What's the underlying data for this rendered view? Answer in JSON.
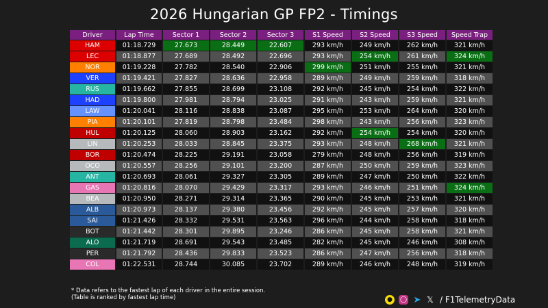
{
  "title": "2026 Hungarian GP FP2 - Timings",
  "headers": [
    "Driver",
    "Lap Time",
    "Sector 1",
    "Sector 2",
    "Sector 3",
    "S1 Speed",
    "S2 Speed",
    "S3 Speed",
    "Speed Trap"
  ],
  "colors": {
    "best": "#0a6e15",
    "header": "#7a1f7f"
  },
  "rows": [
    {
      "driver": "HAM",
      "color": "#dc0000",
      "lap": "01:18.729",
      "s1": "27.673",
      "s2": "28.449",
      "s3": "22.607",
      "sp1": "293 km/h",
      "sp2": "249 km/h",
      "sp3": "262 km/h",
      "trap": "321 km/h",
      "best": [
        "s1",
        "s2",
        "s3"
      ]
    },
    {
      "driver": "LEC",
      "color": "#dc0000",
      "lap": "01:18.877",
      "s1": "27.689",
      "s2": "28.492",
      "s3": "22.696",
      "sp1": "293 km/h",
      "sp2": "254 km/h",
      "sp3": "261 km/h",
      "trap": "324 km/h",
      "best": [
        "sp2",
        "trap"
      ]
    },
    {
      "driver": "NOR",
      "color": "#ff8000",
      "lap": "01:19.228",
      "s1": "27.782",
      "s2": "28.540",
      "s3": "22.906",
      "sp1": "299 km/h",
      "sp2": "251 km/h",
      "sp3": "255 km/h",
      "trap": "321 km/h",
      "best": [
        "sp1"
      ]
    },
    {
      "driver": "VER",
      "color": "#1e41ff",
      "lap": "01:19.421",
      "s1": "27.827",
      "s2": "28.636",
      "s3": "22.958",
      "sp1": "289 km/h",
      "sp2": "249 km/h",
      "sp3": "259 km/h",
      "trap": "318 km/h",
      "best": []
    },
    {
      "driver": "RUS",
      "color": "#27b5a3",
      "lap": "01:19.662",
      "s1": "27.855",
      "s2": "28.699",
      "s3": "23.108",
      "sp1": "292 km/h",
      "sp2": "245 km/h",
      "sp3": "254 km/h",
      "trap": "322 km/h",
      "best": []
    },
    {
      "driver": "HAD",
      "color": "#1e41ff",
      "lap": "01:19.800",
      "s1": "27.981",
      "s2": "28.794",
      "s3": "23.025",
      "sp1": "291 km/h",
      "sp2": "243 km/h",
      "sp3": "259 km/h",
      "trap": "321 km/h",
      "best": []
    },
    {
      "driver": "LAW",
      "color": "#6692ff",
      "lap": "01:20.041",
      "s1": "28.116",
      "s2": "28.838",
      "s3": "23.087",
      "sp1": "295 km/h",
      "sp2": "253 km/h",
      "sp3": "264 km/h",
      "trap": "320 km/h",
      "best": []
    },
    {
      "driver": "PIA",
      "color": "#ff8000",
      "lap": "01:20.101",
      "s1": "27.819",
      "s2": "28.798",
      "s3": "23.484",
      "sp1": "298 km/h",
      "sp2": "243 km/h",
      "sp3": "256 km/h",
      "trap": "323 km/h",
      "best": []
    },
    {
      "driver": "HUL",
      "color": "#c00000",
      "lap": "01:20.125",
      "s1": "28.060",
      "s2": "28.903",
      "s3": "23.162",
      "sp1": "292 km/h",
      "sp2": "254 km/h",
      "sp3": "254 km/h",
      "trap": "320 km/h",
      "best": [
        "sp2"
      ]
    },
    {
      "driver": "LIN",
      "color": "#b6babd",
      "lap": "01:20.253",
      "s1": "28.033",
      "s2": "28.845",
      "s3": "23.375",
      "sp1": "293 km/h",
      "sp2": "248 km/h",
      "sp3": "268 km/h",
      "trap": "321 km/h",
      "best": [
        "sp3"
      ]
    },
    {
      "driver": "BOR",
      "color": "#c00000",
      "lap": "01:20.474",
      "s1": "28.225",
      "s2": "29.191",
      "s3": "23.058",
      "sp1": "279 km/h",
      "sp2": "248 km/h",
      "sp3": "256 km/h",
      "trap": "319 km/h",
      "best": []
    },
    {
      "driver": "OCO",
      "color": "#b6babd",
      "lap": "01:20.557",
      "s1": "28.256",
      "s2": "29.101",
      "s3": "23.200",
      "sp1": "287 km/h",
      "sp2": "250 km/h",
      "sp3": "259 km/h",
      "trap": "323 km/h",
      "best": []
    },
    {
      "driver": "ANT",
      "color": "#27b5a3",
      "lap": "01:20.693",
      "s1": "28.061",
      "s2": "29.327",
      "s3": "23.305",
      "sp1": "289 km/h",
      "sp2": "247 km/h",
      "sp3": "250 km/h",
      "trap": "322 km/h",
      "best": []
    },
    {
      "driver": "GAS",
      "color": "#e876b5",
      "lap": "01:20.816",
      "s1": "28.070",
      "s2": "29.429",
      "s3": "23.317",
      "sp1": "293 km/h",
      "sp2": "246 km/h",
      "sp3": "251 km/h",
      "trap": "324 km/h",
      "best": [
        "trap"
      ]
    },
    {
      "driver": "BEA",
      "color": "#b6babd",
      "lap": "01:20.950",
      "s1": "28.271",
      "s2": "29.314",
      "s3": "23.365",
      "sp1": "290 km/h",
      "sp2": "245 km/h",
      "sp3": "253 km/h",
      "trap": "321 km/h",
      "best": []
    },
    {
      "driver": "ALB",
      "color": "#2b5a9a",
      "lap": "01:20.973",
      "s1": "28.137",
      "s2": "29.380",
      "s3": "23.456",
      "sp1": "292 km/h",
      "sp2": "245 km/h",
      "sp3": "257 km/h",
      "trap": "320 km/h",
      "best": []
    },
    {
      "driver": "SAI",
      "color": "#2b5a9a",
      "lap": "01:21.426",
      "s1": "28.332",
      "s2": "29.531",
      "s3": "23.563",
      "sp1": "296 km/h",
      "sp2": "244 km/h",
      "sp3": "258 km/h",
      "trap": "318 km/h",
      "best": []
    },
    {
      "driver": "BOT",
      "color": "#2a2a2a",
      "lap": "01:21.442",
      "s1": "28.301",
      "s2": "29.895",
      "s3": "23.246",
      "sp1": "286 km/h",
      "sp2": "245 km/h",
      "sp3": "258 km/h",
      "trap": "321 km/h",
      "best": []
    },
    {
      "driver": "ALO",
      "color": "#0b6b4f",
      "lap": "01:21.719",
      "s1": "28.691",
      "s2": "29.543",
      "s3": "23.485",
      "sp1": "282 km/h",
      "sp2": "245 km/h",
      "sp3": "246 km/h",
      "trap": "308 km/h",
      "best": []
    },
    {
      "driver": "PER",
      "color": "#2a2a2a",
      "lap": "01:21.792",
      "s1": "28.436",
      "s2": "29.833",
      "s3": "23.523",
      "sp1": "286 km/h",
      "sp2": "247 km/h",
      "sp3": "256 km/h",
      "trap": "318 km/h",
      "best": []
    },
    {
      "driver": "COL",
      "color": "#e876b5",
      "lap": "01:22.531",
      "s1": "28.744",
      "s2": "30.085",
      "s3": "23.702",
      "sp1": "289 km/h",
      "sp2": "246 km/h",
      "sp3": "248 km/h",
      "trap": "319 km/h",
      "best": []
    }
  ],
  "footnote": {
    "line1": "* Data refers to the fastest lap of each driver in the entire session.",
    "line2": "(Table is ranked by fastest lap time)"
  },
  "social": {
    "handle": "/ F1TelemetryData",
    "icons": [
      "snapchat-icon",
      "instagram-icon",
      "telegram-icon",
      "x-icon"
    ]
  }
}
